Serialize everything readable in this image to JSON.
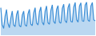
{
  "chart_data": {
    "type": "line",
    "categories": [
      null,
      null,
      null,
      null,
      null,
      null,
      null,
      null,
      null,
      null,
      null,
      null,
      null,
      null,
      null,
      null,
      null,
      null,
      null,
      null,
      null,
      null,
      null,
      null,
      null,
      null,
      null,
      null,
      null,
      null,
      null,
      null,
      null,
      null,
      null,
      null,
      null,
      null,
      null,
      null,
      null,
      null,
      null,
      null,
      null,
      null,
      null,
      null,
      null,
      null,
      null,
      null,
      null,
      null,
      null,
      null,
      null,
      null,
      null,
      null,
      null,
      null,
      null,
      null,
      null,
      null,
      null
    ],
    "values": [
      80,
      30,
      20,
      55,
      75,
      35,
      22,
      50,
      70,
      30,
      25,
      60,
      72,
      28,
      24,
      58,
      70,
      30,
      26,
      62,
      75,
      32,
      28,
      65,
      80,
      35,
      30,
      68,
      82,
      38,
      30,
      70,
      85,
      36,
      32,
      72,
      88,
      40,
      34,
      75,
      86,
      38,
      35,
      78,
      90,
      42,
      36,
      80,
      92,
      40,
      38,
      82,
      95,
      45,
      38,
      85,
      94,
      42,
      40,
      88,
      96,
      44,
      40,
      85,
      95,
      45,
      42
    ],
    "color": "#3d8fd6",
    "ylim": [
      0,
      100
    ],
    "grid": false,
    "tick_labels": false
  }
}
